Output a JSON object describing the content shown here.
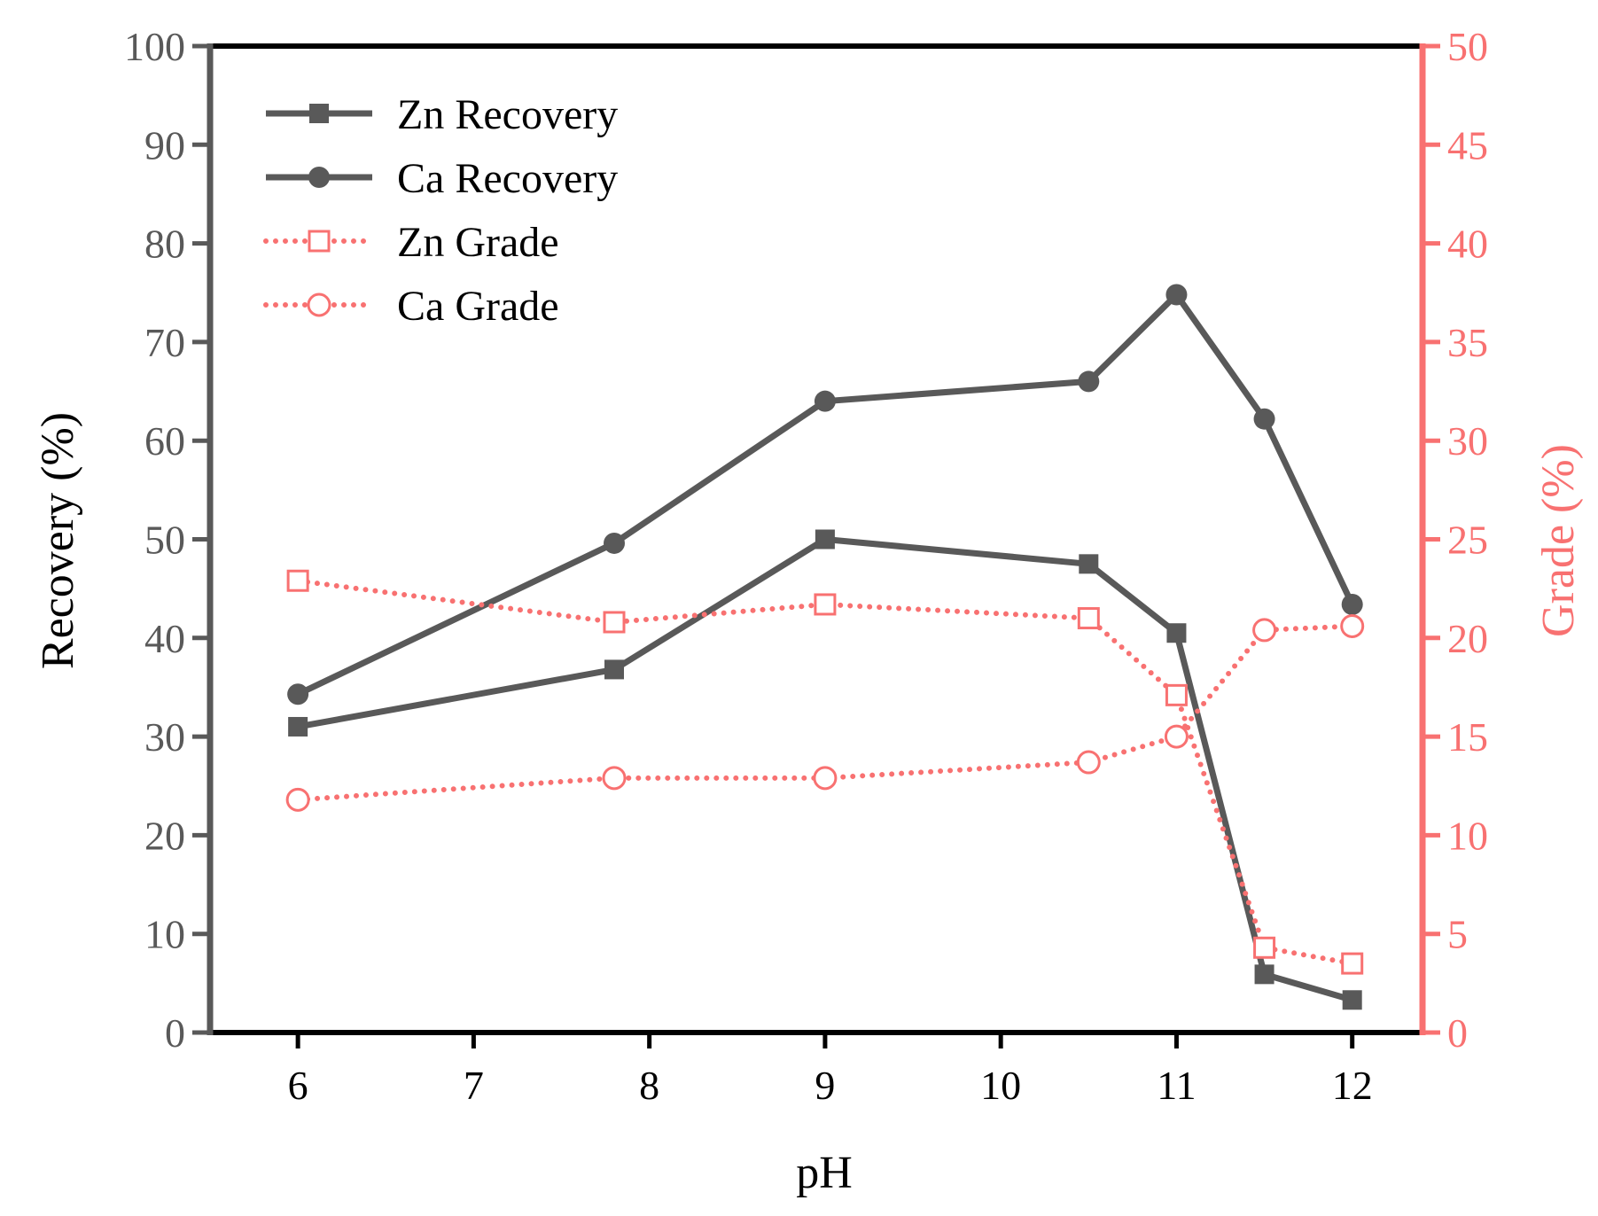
{
  "chart_data": {
    "type": "line",
    "xlabel": "pH",
    "ylabel_left": "Recovery (%)",
    "ylabel_right": "Grade (%)",
    "xlim": [
      5.5,
      12.4
    ],
    "ylim_left": [
      0,
      100
    ],
    "ylim_right": [
      0,
      50
    ],
    "x_ticks": [
      "6",
      "7",
      "8",
      "9",
      "10",
      "11",
      "12"
    ],
    "y_left_ticks": [
      "0",
      "10",
      "20",
      "30",
      "40",
      "50",
      "60",
      "70",
      "80",
      "90",
      "100"
    ],
    "y_right_ticks": [
      "0",
      "5",
      "10",
      "15",
      "20",
      "25",
      "30",
      "35",
      "40",
      "45",
      "50"
    ],
    "colors": {
      "recovery": "#595959",
      "grade": "#f87171",
      "frame": "#000000"
    },
    "x": [
      6,
      7.8,
      9,
      10.5,
      11,
      11.5,
      12
    ],
    "series": [
      {
        "name": "Zn Recovery",
        "axis": "left",
        "marker": "square-filled",
        "line": "solid",
        "values": [
          31.0,
          36.8,
          50.0,
          47.5,
          40.5,
          5.9,
          3.3
        ]
      },
      {
        "name": "Ca Recovery",
        "axis": "left",
        "marker": "circle-filled",
        "line": "solid",
        "values": [
          34.3,
          49.6,
          64.0,
          66.0,
          74.8,
          62.2,
          43.4
        ]
      },
      {
        "name": "Zn Grade",
        "axis": "right",
        "marker": "square-open",
        "line": "dotted",
        "values": [
          22.9,
          20.8,
          21.7,
          21.0,
          17.1,
          4.3,
          3.5
        ]
      },
      {
        "name": "Ca Grade",
        "axis": "right",
        "marker": "circle-open",
        "line": "dotted",
        "values": [
          11.8,
          12.9,
          12.9,
          13.7,
          15.0,
          20.4,
          20.6
        ]
      }
    ],
    "legend": "top-left"
  }
}
